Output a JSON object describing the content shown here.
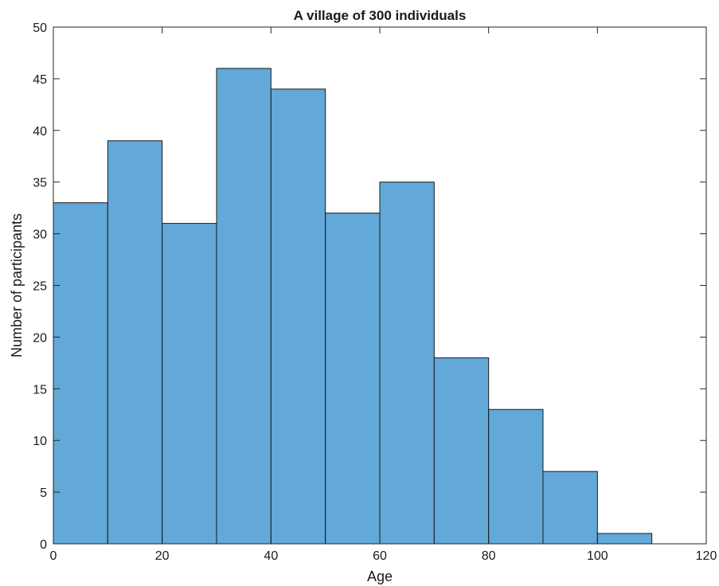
{
  "chart_data": {
    "type": "bar",
    "title": "A village of 300 individuals",
    "xlabel": "Age",
    "ylabel": "Number of participants",
    "bin_edges": [
      0,
      10,
      20,
      30,
      40,
      50,
      60,
      70,
      80,
      90,
      100,
      110
    ],
    "values": [
      33,
      39,
      31,
      46,
      44,
      32,
      35,
      18,
      13,
      7,
      1
    ],
    "xlim": [
      0,
      120
    ],
    "ylim": [
      0,
      50
    ],
    "xticks": [
      0,
      20,
      40,
      60,
      80,
      100,
      120
    ],
    "yticks": [
      0,
      5,
      10,
      15,
      20,
      25,
      30,
      35,
      40,
      45,
      50
    ],
    "grid": false,
    "legend": "none",
    "colors": {
      "bar_fill": "#62a8d8",
      "bar_edge": "#1a1a1a"
    }
  }
}
